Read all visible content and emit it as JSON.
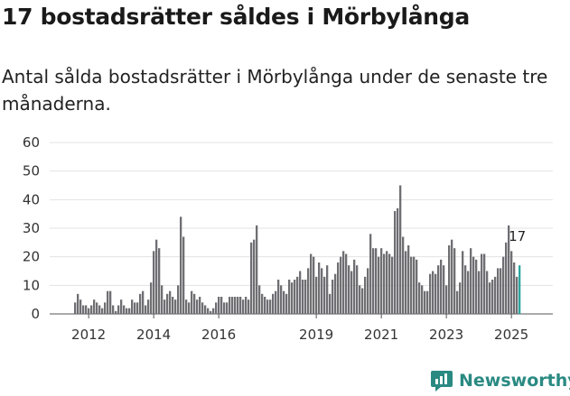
{
  "title": "17 bostadsrätter såldes i Mörbylånga",
  "subtitle": "Antal sålda bostadsrätter i Mörbylånga under de senaste tre månaderna.",
  "brand": {
    "name": "Newsworthy",
    "icon": "newsworthy-logo-icon",
    "color": "#2a8a82"
  },
  "chart_data": {
    "type": "bar",
    "title": "17 bostadsrätter såldes i Mörbylånga",
    "xlabel": "",
    "ylabel": "",
    "ylim": [
      0,
      60
    ],
    "yticks": [
      0,
      10,
      20,
      30,
      40,
      50,
      60
    ],
    "xticks": [
      {
        "label": "2012",
        "index": 5
      },
      {
        "label": "2014",
        "index": 29
      },
      {
        "label": "2016",
        "index": 53
      },
      {
        "label": "2019",
        "index": 89
      },
      {
        "label": "2021",
        "index": 113
      },
      {
        "label": "2023",
        "index": 137
      },
      {
        "label": "2025",
        "index": 161
      }
    ],
    "bar_color": "#6e6e73",
    "highlight_color": "#2ba6a0",
    "highlight_label": "17",
    "grid": true,
    "start_month": "2011-12",
    "values": [
      4,
      7,
      5,
      3,
      3,
      2,
      3,
      5,
      4,
      3,
      2,
      4,
      8,
      8,
      3,
      1,
      3,
      5,
      3,
      2,
      2,
      5,
      4,
      4,
      7,
      8,
      3,
      5,
      11,
      22,
      26,
      23,
      10,
      5,
      7,
      8,
      6,
      5,
      10,
      34,
      27,
      5,
      4,
      8,
      7,
      5,
      6,
      4,
      3,
      2,
      1,
      2,
      4,
      6,
      6,
      4,
      4,
      6,
      6,
      6,
      6,
      6,
      5,
      6,
      5,
      25,
      26,
      31,
      10,
      7,
      6,
      5,
      5,
      7,
      8,
      12,
      10,
      8,
      7,
      12,
      11,
      12,
      13,
      15,
      12,
      12,
      16,
      21,
      20,
      13,
      18,
      16,
      13,
      17,
      7,
      12,
      14,
      18,
      20,
      22,
      21,
      17,
      15,
      19,
      17,
      10,
      9,
      13,
      16,
      28,
      23,
      23,
      20,
      23,
      21,
      22,
      21,
      20,
      36,
      37,
      45,
      27,
      22,
      24,
      20,
      20,
      19,
      11,
      10,
      8,
      8,
      14,
      15,
      14,
      17,
      19,
      17,
      10,
      24,
      26,
      23,
      8,
      11,
      22,
      17,
      15,
      23,
      20,
      19,
      15,
      21,
      21,
      15,
      11,
      12,
      13,
      16,
      16,
      20,
      25,
      31,
      22,
      18,
      13,
      17
    ]
  }
}
